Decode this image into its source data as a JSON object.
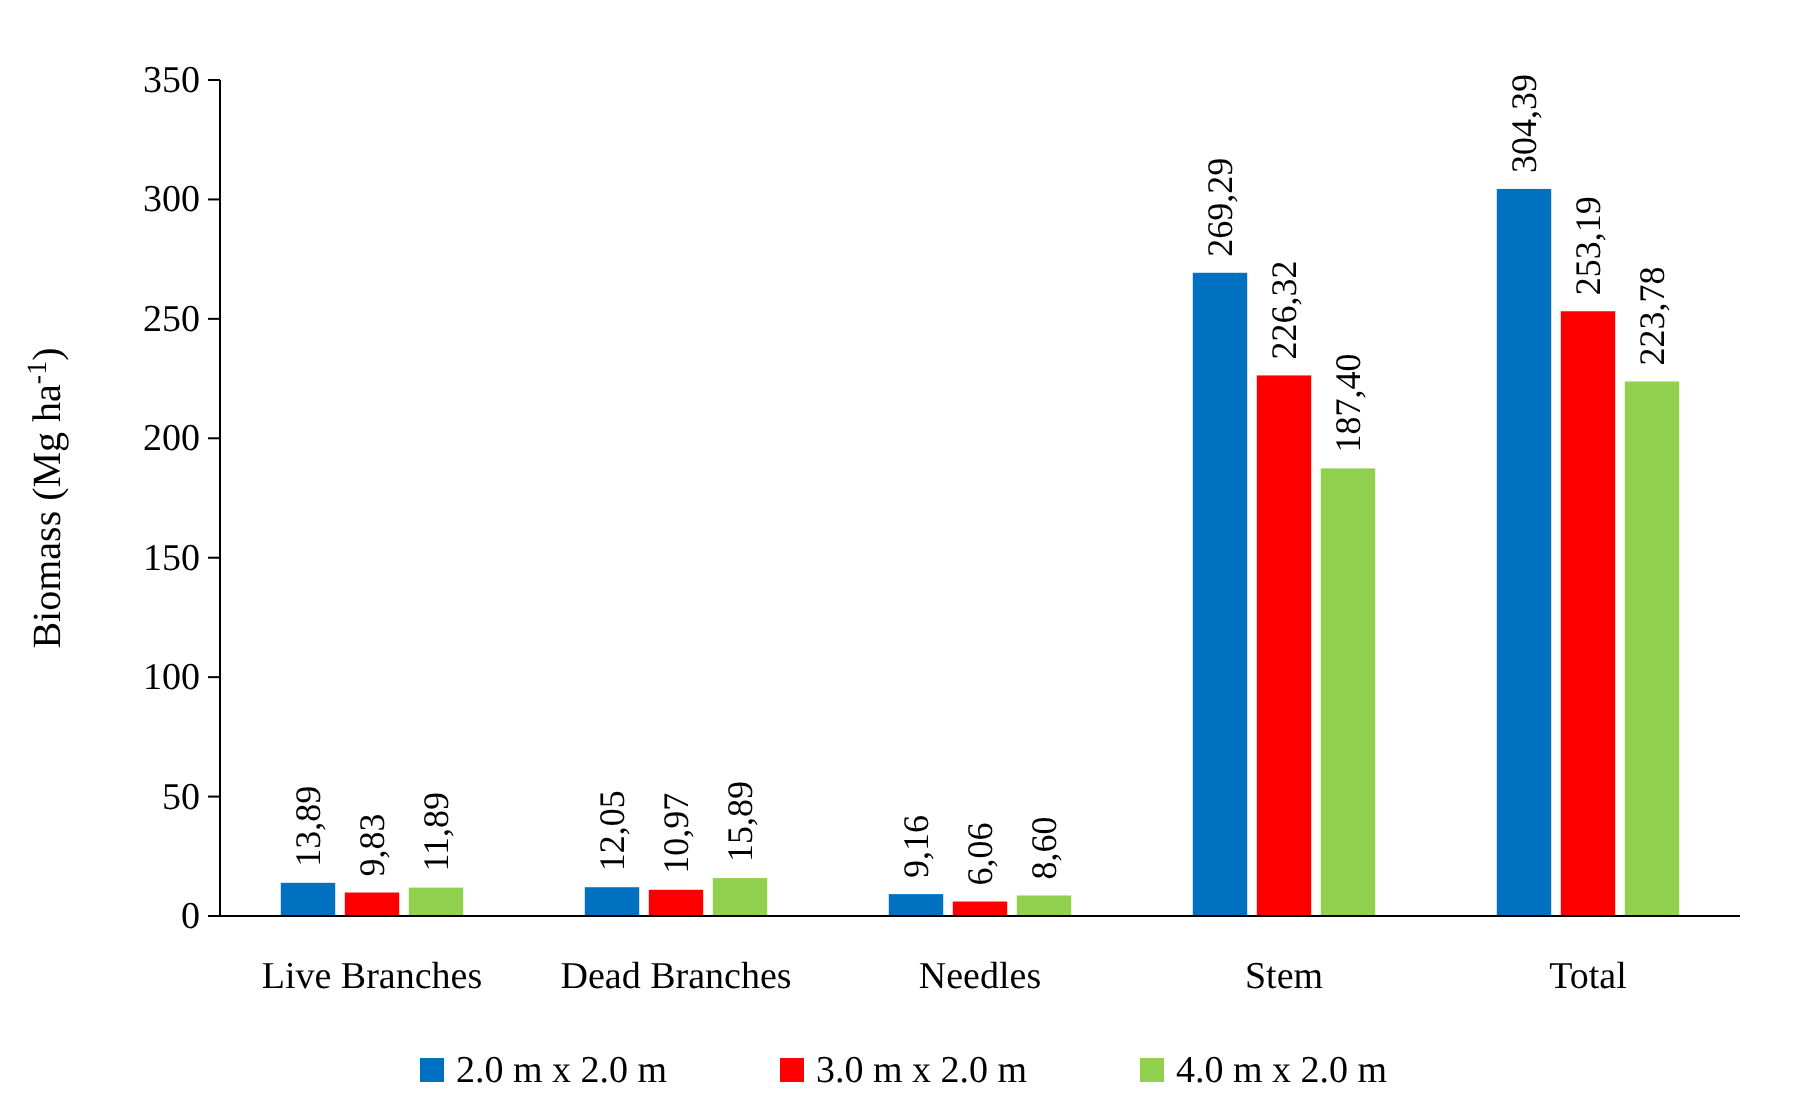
{
  "chart_data": {
    "type": "bar",
    "ylabel": "Biomass (Mg ha$^{-1}$)",
    "categories": [
      "Live Branches",
      "Dead Branches",
      "Needles",
      "Stem",
      "Total"
    ],
    "series": [
      {
        "name": "2.0 m x 2.0 m",
        "color": "#0070c0",
        "values": [
          13.89,
          12.05,
          9.16,
          269.29,
          304.39
        ],
        "value_labels": [
          "13,89",
          "12,05",
          "9,16",
          "269,29",
          "304,39"
        ]
      },
      {
        "name": "3.0 m x 2.0 m",
        "color": "#ff0000",
        "values": [
          9.83,
          10.97,
          6.06,
          226.32,
          253.19
        ],
        "value_labels": [
          "9,83",
          "10,97",
          "6,06",
          "226,32",
          "253,19"
        ]
      },
      {
        "name": "4.0 m x 2.0 m",
        "color": "#92d050",
        "values": [
          11.89,
          15.89,
          8.6,
          187.4,
          223.78
        ],
        "value_labels": [
          "11,89",
          "15,89",
          "8,60",
          "187,40",
          "223,78"
        ]
      }
    ],
    "ylim": [
      0,
      350
    ],
    "yticks": [
      0,
      50,
      100,
      150,
      200,
      250,
      300,
      350
    ],
    "grid": false,
    "legend": "bottom"
  }
}
